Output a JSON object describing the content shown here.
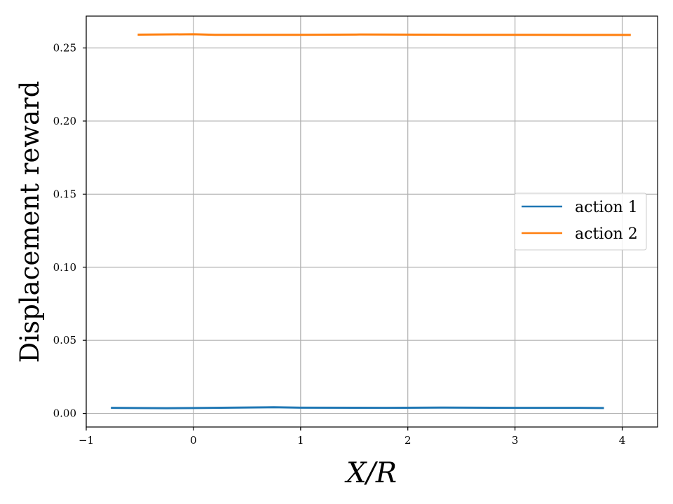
{
  "chart_data": {
    "type": "line",
    "xlabel": "X/R",
    "ylabel": "Displacement reward",
    "xlim": [
      -1.0,
      4.33
    ],
    "ylim": [
      -0.0093,
      0.2718
    ],
    "x_ticks": [
      -1,
      0,
      1,
      2,
      3,
      4
    ],
    "x_tick_labels": [
      "−1",
      "0",
      "1",
      "2",
      "3",
      "4"
    ],
    "y_ticks": [
      0.0,
      0.05,
      0.1,
      0.15,
      0.2,
      0.25
    ],
    "y_tick_labels": [
      "0.00",
      "0.05",
      "0.10",
      "0.15",
      "0.20",
      "0.25"
    ],
    "grid": true,
    "legend_position": "center-right",
    "series": [
      {
        "name": "action 1",
        "color": "#1f77b4",
        "x": [
          -0.77,
          -0.25,
          0.0,
          0.75,
          1.0,
          1.8,
          2.3,
          3.0,
          3.6,
          3.83
        ],
        "y": [
          0.0038,
          0.0036,
          0.0037,
          0.0042,
          0.0039,
          0.0038,
          0.004,
          0.0038,
          0.0038,
          0.0037
        ]
      },
      {
        "name": "action 2",
        "color": "#ff7f0e",
        "x": [
          -0.52,
          0.0,
          0.2,
          1.0,
          1.55,
          2.5,
          3.0,
          3.6,
          4.08
        ],
        "y": [
          0.2591,
          0.2594,
          0.259,
          0.259,
          0.2592,
          0.259,
          0.259,
          0.2589,
          0.2589
        ]
      }
    ]
  }
}
